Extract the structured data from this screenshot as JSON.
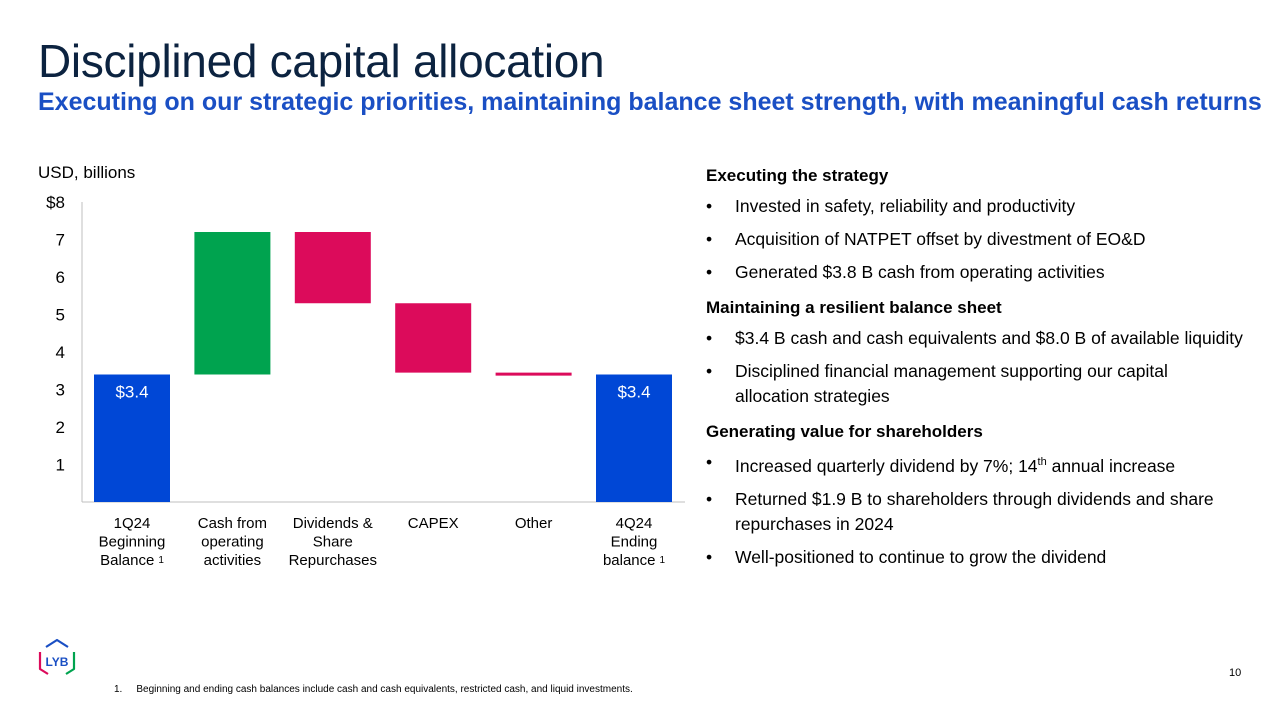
{
  "header": {
    "title": "Disciplined capital allocation",
    "subtitle": "Executing on our strategic priorities, maintaining balance sheet strength, with meaningful cash returns"
  },
  "chart_data": {
    "type": "bar",
    "subtype": "waterfall",
    "unit_label": "USD, billions",
    "y_ticks": [
      "1",
      "2",
      "3",
      "4",
      "5",
      "6",
      "7",
      "$8"
    ],
    "ylim": [
      0,
      8
    ],
    "grid": false,
    "categories": [
      [
        "1Q24",
        "Beginning",
        "Balance"
      ],
      [
        "Cash from",
        "operating",
        "activities"
      ],
      [
        "Dividends &",
        "Share",
        "Repurchases"
      ],
      [
        "CAPEX"
      ],
      [
        "Other"
      ],
      [
        "4Q24",
        "Ending",
        "balance"
      ]
    ],
    "category_footnotes": [
      "1",
      "",
      "",
      "",
      "",
      "1"
    ],
    "bars": [
      {
        "start": 0,
        "end": 3.4,
        "kind": "total",
        "color": "#0047d6",
        "label": "$3.4"
      },
      {
        "start": 3.4,
        "end": 7.2,
        "kind": "increase",
        "color": "#00a34f",
        "label": ""
      },
      {
        "start": 7.2,
        "end": 5.3,
        "kind": "decrease",
        "color": "#dc0b5b",
        "label": ""
      },
      {
        "start": 5.3,
        "end": 3.45,
        "kind": "decrease",
        "color": "#dc0b5b",
        "label": ""
      },
      {
        "start": 3.45,
        "end": 3.4,
        "kind": "decrease",
        "color": "#dc0b5b",
        "label": ""
      },
      {
        "start": 0,
        "end": 3.4,
        "kind": "total",
        "color": "#0047d6",
        "label": "$3.4"
      }
    ]
  },
  "sections": [
    {
      "heading": "Executing the strategy",
      "bullets": [
        "Invested in safety, reliability and productivity",
        "Acquisition of NATPET offset by divestment of EO&D",
        "Generated $3.8 B cash from operating activities"
      ]
    },
    {
      "heading": "Maintaining a resilient balance sheet",
      "bullets": [
        "$3.4 B cash and cash equivalents and $8.0 B of available liquidity",
        "Disciplined financial management supporting our capital allocation strategies"
      ]
    },
    {
      "heading": "Generating value for shareholders",
      "bullets": [
        {
          "before": "Increased quarterly dividend by 7%; 14",
          "sup": "th",
          "after": " annual increase"
        },
        "Returned $1.9 B to shareholders through dividends and share repurchases in 2024",
        "Well-positioned to continue to grow the dividend"
      ]
    }
  ],
  "bullet_char": "•",
  "logo": {
    "text": "LYB",
    "colors": [
      "#1a4fc4",
      "#dc0b5b",
      "#00a34f"
    ]
  },
  "footnote": {
    "number": "1.",
    "text": "Beginning and ending cash balances include cash and cash equivalents, restricted cash, and liquid investments."
  },
  "page_number": "10"
}
